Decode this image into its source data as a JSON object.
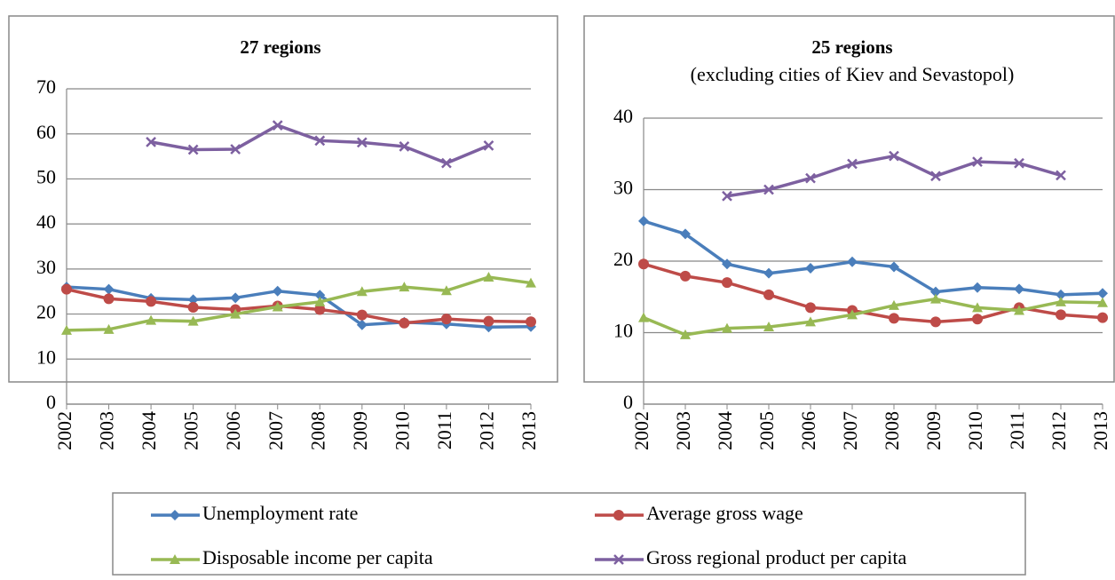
{
  "chart_data": [
    {
      "type": "line",
      "title": "27 regions",
      "categories": [
        "2002",
        "2003",
        "2004",
        "2005",
        "2006",
        "2007",
        "2008",
        "2009",
        "2010",
        "2011",
        "2012",
        "2013"
      ],
      "ylim": [
        0,
        70
      ],
      "yticks": [
        0,
        10,
        20,
        30,
        40,
        50,
        60,
        70
      ],
      "grid": true,
      "series": [
        {
          "name": "Unemployment rate",
          "color": "#4a7ebb",
          "marker": "diamond",
          "values": [
            26,
            25.5,
            23.5,
            23.2,
            23.6,
            25.1,
            24.2,
            17.6,
            18.2,
            17.8,
            17.1,
            17.2
          ]
        },
        {
          "name": "Average gross wage",
          "color": "#be4b48",
          "marker": "circle",
          "values": [
            25.5,
            23.4,
            22.8,
            21.5,
            21,
            21.8,
            21,
            19.8,
            18,
            18.9,
            18.4,
            18.3
          ]
        },
        {
          "name": "Disposable income per capita",
          "color": "#98b954",
          "marker": "triangle",
          "values": [
            16.4,
            16.6,
            18.6,
            18.4,
            20,
            21.6,
            22.7,
            25,
            26,
            25.2,
            28.2,
            26.9
          ]
        },
        {
          "name": "Gross regional product per capita",
          "color": "#7d60a0",
          "marker": "x",
          "values": [
            null,
            null,
            58.2,
            56.5,
            56.6,
            61.9,
            58.5,
            58.1,
            57.2,
            53.5,
            57.4,
            null
          ]
        }
      ]
    },
    {
      "type": "line",
      "title": "25 regions",
      "subtitle": "(excluding cities of Kiev and Sevastopol)",
      "categories": [
        "2002",
        "2003",
        "2004",
        "2005",
        "2006",
        "2007",
        "2008",
        "2009",
        "2010",
        "2011",
        "2012",
        "2013"
      ],
      "ylim": [
        0,
        40
      ],
      "yticks": [
        0,
        10,
        20,
        30,
        40
      ],
      "grid": true,
      "series": [
        {
          "name": "Unemployment rate",
          "color": "#4a7ebb",
          "marker": "diamond",
          "values": [
            25.6,
            23.8,
            19.6,
            18.3,
            19,
            19.9,
            19.2,
            15.7,
            16.3,
            16.1,
            15.3,
            15.5
          ]
        },
        {
          "name": "Average gross wage",
          "color": "#be4b48",
          "marker": "circle",
          "values": [
            19.6,
            17.9,
            17,
            15.3,
            13.5,
            13.1,
            12,
            11.5,
            11.9,
            13.5,
            12.5,
            12.1
          ]
        },
        {
          "name": "Disposable income per capita",
          "color": "#98b954",
          "marker": "triangle",
          "values": [
            12.1,
            9.7,
            10.6,
            10.8,
            11.5,
            12.5,
            13.8,
            14.7,
            13.5,
            13.1,
            14.3,
            14.2
          ]
        },
        {
          "name": "Gross regional product per capita",
          "color": "#7d60a0",
          "marker": "x",
          "values": [
            null,
            null,
            29.1,
            30,
            31.6,
            33.6,
            34.7,
            31.9,
            33.9,
            33.7,
            32,
            null
          ]
        }
      ]
    }
  ]
}
